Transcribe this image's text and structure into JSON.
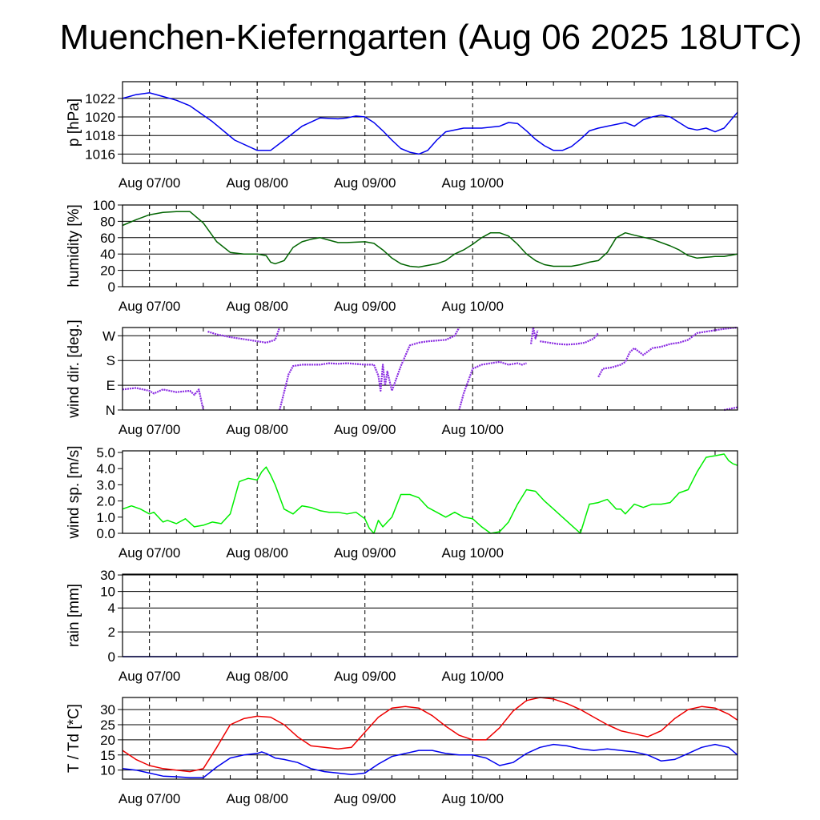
{
  "title": "Muenchen-Kieferngarten (Aug 06 2025 18UTC)",
  "x_tick_labels": [
    "Aug 07/00",
    "Aug 08/00",
    "Aug 09/00",
    "Aug 10/00"
  ],
  "chart_data": [
    {
      "type": "line",
      "ylabel": "p [hPa]",
      "x_unit": "hours since Aug 06 18UTC",
      "ylim": [
        1015,
        1023.8
      ],
      "ticks": [
        1016,
        1018,
        1020,
        1022
      ],
      "tick_labels": [
        "1016",
        "1018",
        "1020",
        "1022"
      ],
      "grid": true,
      "series": [
        {
          "color": "#0000ee",
          "x": [
            0,
            3,
            6,
            9,
            12,
            15,
            20,
            25,
            30,
            33,
            36,
            40,
            44,
            48,
            50,
            52,
            54,
            56,
            58,
            60,
            62,
            64,
            66,
            68,
            70,
            72,
            76,
            80,
            84,
            86,
            88,
            90,
            92,
            94,
            96,
            98,
            100,
            102,
            104,
            106,
            108,
            112,
            114,
            116,
            118,
            120,
            122,
            124,
            126,
            128,
            130,
            132,
            134,
            137
          ],
          "y": [
            1022.0,
            1022.4,
            1022.6,
            1022.2,
            1021.8,
            1021.2,
            1019.5,
            1017.5,
            1016.4,
            1016.4,
            1017.5,
            1019.0,
            1019.9,
            1019.8,
            1019.9,
            1020.1,
            1020.0,
            1019.4,
            1018.5,
            1017.5,
            1016.6,
            1016.2,
            1016.0,
            1016.4,
            1017.5,
            1018.4,
            1018.8,
            1018.8,
            1019.0,
            1019.4,
            1019.3,
            1018.5,
            1017.6,
            1016.9,
            1016.4,
            1016.4,
            1016.8,
            1017.6,
            1018.5,
            1018.8,
            1019.0,
            1019.4,
            1019.0,
            1019.7,
            1020.0,
            1020.2,
            1020.0,
            1019.4,
            1018.8,
            1018.6,
            1018.8,
            1018.4,
            1018.8,
            1020.5
          ]
        }
      ]
    },
    {
      "type": "line",
      "ylabel": "humidity [%]",
      "ylim": [
        0,
        100
      ],
      "ticks": [
        0,
        20,
        40,
        60,
        80,
        100
      ],
      "tick_labels": [
        "0",
        "20",
        "40",
        "60",
        "80",
        "100"
      ],
      "grid": true,
      "series": [
        {
          "color": "#006400",
          "x": [
            0,
            3,
            6,
            9,
            12,
            15,
            18,
            21,
            24,
            27,
            30,
            32,
            33,
            34,
            36,
            38,
            40,
            42,
            44,
            46,
            48,
            50,
            54,
            56,
            58,
            60,
            62,
            64,
            66,
            70,
            72,
            74,
            76,
            78,
            80,
            82,
            84,
            86,
            88,
            90,
            92,
            94,
            96,
            98,
            100,
            102,
            104,
            106,
            108,
            110,
            112,
            114,
            118,
            122,
            124,
            126,
            128,
            130,
            132,
            134,
            137
          ],
          "y": [
            75,
            82,
            88,
            91,
            92,
            92,
            78,
            55,
            42,
            40,
            40,
            38,
            30,
            28,
            32,
            48,
            55,
            58,
            60,
            57,
            54,
            54,
            55,
            53,
            45,
            35,
            28,
            25,
            24,
            28,
            32,
            40,
            45,
            52,
            60,
            66,
            66,
            62,
            52,
            40,
            32,
            27,
            25,
            25,
            25,
            27,
            30,
            32,
            42,
            60,
            66,
            63,
            58,
            50,
            45,
            38,
            35,
            36,
            37,
            37,
            40
          ]
        }
      ]
    },
    {
      "type": "scatter",
      "ylabel": "wind dir. [deg.]",
      "ylim": [
        0,
        300
      ],
      "ticks": [
        0,
        90,
        180,
        270
      ],
      "tick_labels": [
        "N",
        "E",
        "S",
        "W"
      ],
      "grid": true,
      "series": [
        {
          "color": "#8a2be2",
          "segments": [
            {
              "x": [
                0,
                3,
                6,
                7,
                9,
                12,
                15,
                16,
                17,
                18
              ],
              "y": [
                75,
                80,
                70,
                60,
                75,
                65,
                70,
                55,
                75,
                0
              ]
            },
            {
              "x": [
                19,
                21,
                24,
                28,
                32,
                34,
                35
              ],
              "y": [
                285,
                275,
                265,
                255,
                245,
                255,
                300
              ]
            },
            {
              "x": [
                35,
                37,
                38,
                40,
                44,
                46,
                48,
                50,
                54,
                56,
                57,
                57.5,
                58,
                58.5,
                59,
                60,
                62,
                64,
                66
              ],
              "y": [
                0,
                130,
                160,
                165,
                165,
                170,
                168,
                170,
                165,
                165,
                125,
                70,
                165,
                90,
                140,
                70,
                160,
                235,
                245
              ]
            },
            {
              "x": [
                66,
                68,
                72,
                74,
                75
              ],
              "y": [
                245,
                250,
                255,
                270,
                300
              ]
            },
            {
              "x": [
                75,
                76,
                78,
                80,
                82,
                84,
                86,
                88,
                89,
                90
              ],
              "y": [
                0,
                60,
                150,
                165,
                170,
                175,
                165,
                170,
                165,
                170
              ]
            },
            {
              "x": [
                91,
                91.5,
                92,
                92.5
              ],
              "y": [
                240,
                300,
                260,
                290
              ]
            },
            {
              "x": [
                93,
                95,
                97,
                99,
                101,
                103,
                105,
                106
              ],
              "y": [
                250,
                245,
                240,
                238,
                240,
                245,
                260,
                280
              ]
            },
            {
              "x": [
                106,
                107,
                109,
                110,
                111,
                112,
                113,
                114,
                116,
                118,
                120,
                122,
                124,
                126,
                128,
                130,
                132,
                134,
                137
              ],
              "y": [
                120,
                150,
                155,
                160,
                165,
                175,
                210,
                225,
                200,
                225,
                230,
                240,
                245,
                255,
                280,
                285,
                290,
                295,
                300
              ]
            },
            {
              "x": [
                134,
                137
              ],
              "y": [
                0,
                10
              ]
            }
          ]
        }
      ]
    },
    {
      "type": "line",
      "ylabel": "wind sp. [m/s]",
      "ylim": [
        0,
        5.1
      ],
      "ticks": [
        0,
        1,
        2,
        3,
        4,
        5
      ],
      "tick_labels": [
        "0.0",
        "1.0",
        "2.0",
        "3.0",
        "4.0",
        "5.0"
      ],
      "grid": false,
      "series": [
        {
          "color": "#00ee00",
          "x": [
            0,
            2,
            4,
            6,
            7,
            8,
            9,
            10,
            12,
            14,
            16,
            18,
            20,
            22,
            24,
            26,
            28,
            30,
            31,
            32,
            33,
            34,
            36,
            38,
            40,
            42,
            44,
            46,
            48,
            50,
            52,
            54,
            55,
            56,
            57,
            58,
            60,
            62,
            64,
            66,
            68,
            70,
            72,
            74,
            76,
            78,
            80,
            82,
            84,
            86,
            88,
            90,
            92,
            94,
            96,
            98,
            100,
            102,
            104,
            106,
            108,
            110,
            111,
            112,
            114,
            116,
            118,
            120,
            122,
            124,
            126,
            128,
            130,
            132,
            134,
            135,
            136,
            137
          ],
          "y": [
            1.5,
            1.7,
            1.5,
            1.2,
            1.3,
            1.0,
            0.7,
            0.8,
            0.6,
            0.9,
            0.4,
            0.5,
            0.7,
            0.6,
            1.2,
            3.2,
            3.4,
            3.3,
            3.8,
            4.1,
            3.6,
            3.0,
            1.5,
            1.2,
            1.7,
            1.6,
            1.4,
            1.3,
            1.3,
            1.2,
            1.3,
            0.9,
            0.3,
            0.0,
            0.8,
            0.4,
            1.0,
            2.4,
            2.4,
            2.2,
            1.6,
            1.3,
            1.0,
            1.3,
            1.0,
            0.9,
            0.4,
            0.0,
            0.1,
            0.7,
            1.8,
            2.7,
            2.6,
            2.0,
            1.5,
            1.0,
            0.5,
            0.0,
            1.8,
            1.9,
            2.1,
            1.5,
            1.5,
            1.2,
            1.8,
            1.6,
            1.8,
            1.8,
            1.9,
            2.5,
            2.7,
            3.8,
            4.7,
            4.8,
            4.9,
            4.5,
            4.3,
            4.2
          ]
        }
      ]
    },
    {
      "type": "line",
      "ylabel": "rain [mm]",
      "ylim": [
        0,
        1
      ],
      "ticks": [
        0,
        0.3,
        0.59,
        0.79,
        0.99
      ],
      "tick_labels": [
        "0",
        "2",
        "4",
        "10",
        "30"
      ],
      "grid": true,
      "series": [
        {
          "color": "#0000ee",
          "x": [
            0,
            137
          ],
          "y": [
            0,
            0
          ]
        }
      ]
    },
    {
      "type": "line",
      "ylabel": "T / Td [*C]",
      "ylim": [
        7,
        34
      ],
      "ticks": [
        10,
        15,
        20,
        25,
        30
      ],
      "tick_labels": [
        "10",
        "15",
        "20",
        "25",
        "30"
      ],
      "grid": true,
      "series": [
        {
          "name": "T",
          "color": "#ee0000",
          "x": [
            0,
            3,
            6,
            9,
            12,
            15,
            18,
            21,
            24,
            27,
            30,
            33,
            36,
            39,
            42,
            45,
            48,
            51,
            54,
            57,
            60,
            63,
            66,
            69,
            72,
            75,
            78,
            81,
            84,
            87,
            90,
            93,
            96,
            99,
            102,
            105,
            108,
            111,
            114,
            117,
            120,
            123,
            126,
            129,
            132,
            135,
            137
          ],
          "y": [
            16.5,
            13.5,
            11.5,
            10.5,
            10.0,
            9.5,
            10.5,
            17.5,
            25.0,
            27.0,
            27.8,
            27.5,
            25.0,
            21.0,
            18.0,
            17.5,
            17.0,
            17.5,
            22.5,
            27.5,
            30.5,
            31.0,
            30.5,
            28.0,
            24.5,
            21.5,
            20.0,
            20.0,
            24.0,
            29.5,
            33.0,
            34.0,
            33.5,
            32.0,
            30.0,
            27.5,
            25.0,
            23.0,
            22.0,
            21.0,
            23.0,
            27.0,
            30.0,
            31.0,
            30.5,
            28.5,
            26.5
          ]
        },
        {
          "name": "Td",
          "color": "#0000ee",
          "x": [
            0,
            3,
            6,
            9,
            12,
            15,
            18,
            21,
            24,
            27,
            30,
            31,
            32,
            34,
            36,
            39,
            42,
            45,
            48,
            51,
            54,
            57,
            60,
            63,
            66,
            69,
            72,
            75,
            78,
            81,
            84,
            87,
            90,
            93,
            96,
            99,
            102,
            105,
            108,
            111,
            114,
            117,
            120,
            123,
            126,
            129,
            132,
            135,
            137
          ],
          "y": [
            10.5,
            10.0,
            9.0,
            8.0,
            7.8,
            7.5,
            7.5,
            11.0,
            14.0,
            15.0,
            15.5,
            16.0,
            15.5,
            14.0,
            13.5,
            12.5,
            10.5,
            9.5,
            9.0,
            8.5,
            9.0,
            12.0,
            14.5,
            15.5,
            16.5,
            16.5,
            15.5,
            15.0,
            15.0,
            14.0,
            11.5,
            12.5,
            15.5,
            17.5,
            18.5,
            18.0,
            17.0,
            16.5,
            17.0,
            16.5,
            16.0,
            15.0,
            13.0,
            13.5,
            15.5,
            17.5,
            18.5,
            17.5,
            15.0
          ]
        }
      ]
    }
  ]
}
